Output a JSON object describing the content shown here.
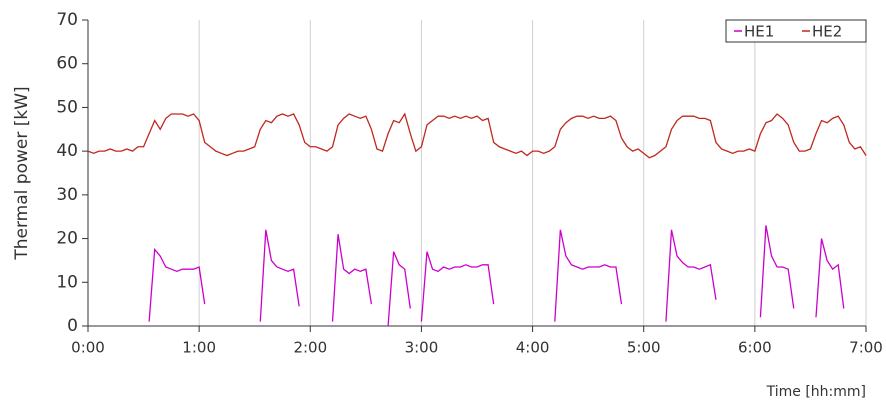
{
  "chart_data": {
    "type": "line",
    "x_label": "Time [hh:mm]",
    "y_label": "Thermal power [kW]",
    "xlim": [
      0,
      7
    ],
    "ylim": [
      0,
      70
    ],
    "xticks": [
      {
        "value": 0,
        "label": "0:00"
      },
      {
        "value": 1,
        "label": "1:00"
      },
      {
        "value": 2,
        "label": "2:00"
      },
      {
        "value": 3,
        "label": "3:00"
      },
      {
        "value": 4,
        "label": "4:00"
      },
      {
        "value": 5,
        "label": "5:00"
      },
      {
        "value": 6,
        "label": "6:00"
      },
      {
        "value": 7,
        "label": "7:00"
      }
    ],
    "yticks": [
      0,
      10,
      20,
      30,
      40,
      50,
      60,
      70
    ],
    "grid": "x",
    "legend": "upper right",
    "x": [
      0,
      0.05,
      0.1,
      0.15,
      0.2,
      0.25,
      0.3,
      0.35,
      0.4,
      0.45,
      0.5,
      0.55,
      0.6,
      0.65,
      0.7,
      0.75,
      0.8,
      0.85,
      0.9,
      0.95,
      1,
      1.05,
      1.1,
      1.15,
      1.2,
      1.25,
      1.3,
      1.35,
      1.4,
      1.45,
      1.5,
      1.55,
      1.6,
      1.65,
      1.7,
      1.75,
      1.8,
      1.85,
      1.9,
      1.95,
      2,
      2.05,
      2.1,
      2.15,
      2.2,
      2.25,
      2.3,
      2.35,
      2.4,
      2.45,
      2.5,
      2.55,
      2.6,
      2.65,
      2.7,
      2.75,
      2.8,
      2.85,
      2.9,
      2.95,
      3,
      3.05,
      3.1,
      3.15,
      3.2,
      3.25,
      3.3,
      3.35,
      3.4,
      3.45,
      3.5,
      3.55,
      3.6,
      3.65,
      3.7,
      3.75,
      3.8,
      3.85,
      3.9,
      3.95,
      4,
      4.05,
      4.1,
      4.15,
      4.2,
      4.25,
      4.3,
      4.35,
      4.4,
      4.45,
      4.5,
      4.55,
      4.6,
      4.65,
      4.7,
      4.75,
      4.8,
      4.85,
      4.9,
      4.95,
      5,
      5.05,
      5.1,
      5.15,
      5.2,
      5.25,
      5.3,
      5.35,
      5.4,
      5.45,
      5.5,
      5.55,
      5.6,
      5.65,
      5.7,
      5.75,
      5.8,
      5.85,
      5.9,
      5.95,
      6,
      6.05,
      6.1,
      6.15,
      6.2,
      6.25,
      6.3,
      6.35,
      6.4,
      6.45,
      6.5,
      6.55,
      6.6,
      6.65,
      6.7,
      6.75,
      6.8,
      6.85,
      6.9,
      6.95,
      7
    ],
    "series": [
      {
        "name": "HE1",
        "color": "#cc00cc",
        "values": [
          null,
          null,
          null,
          null,
          null,
          null,
          null,
          null,
          null,
          null,
          null,
          1,
          17.5,
          16,
          13.5,
          13,
          12.5,
          13,
          13,
          13,
          13.5,
          5,
          null,
          null,
          null,
          null,
          null,
          null,
          null,
          null,
          null,
          1,
          22,
          15,
          13.5,
          13,
          12.5,
          13,
          4.5,
          null,
          null,
          null,
          null,
          null,
          1,
          21,
          13,
          12,
          13,
          12.5,
          13,
          5,
          null,
          null,
          0,
          17,
          14,
          13,
          4,
          null,
          1,
          17,
          13,
          12.5,
          13.5,
          13,
          13.5,
          13.5,
          14,
          13.5,
          13.5,
          14,
          14,
          5,
          null,
          null,
          null,
          null,
          null,
          null,
          null,
          null,
          null,
          null,
          1,
          22,
          16,
          14,
          13.5,
          13,
          13.5,
          13.5,
          13.5,
          14,
          13.5,
          13.5,
          5,
          null,
          null,
          null,
          null,
          null,
          null,
          null,
          1,
          22,
          16,
          14.5,
          13.5,
          13.5,
          13,
          13.5,
          14,
          6,
          null,
          null,
          null,
          null,
          null,
          null,
          null,
          2,
          23,
          16,
          13.5,
          13.5,
          13,
          4,
          null,
          null,
          null,
          2,
          20,
          15,
          13,
          14,
          4,
          null,
          null,
          null,
          null
        ]
      },
      {
        "name": "HE2",
        "color": "#c0281e",
        "values": [
          40,
          39.5,
          40,
          40,
          40.5,
          40,
          40,
          40.5,
          40,
          41,
          41,
          44,
          47,
          45,
          47.5,
          48.5,
          48.5,
          48.5,
          48,
          48.5,
          47,
          42,
          41,
          40,
          39.5,
          39,
          39.5,
          40,
          40,
          40.5,
          41,
          45,
          47,
          46.5,
          48,
          48.5,
          48,
          48.5,
          46,
          42,
          41,
          41,
          40.5,
          40,
          41,
          46,
          47.5,
          48.5,
          48,
          47.5,
          48,
          45,
          40.5,
          40,
          44,
          47,
          46.5,
          48.5,
          44,
          40,
          41,
          46,
          47,
          48,
          48,
          47.5,
          48,
          47.5,
          48,
          47.5,
          48,
          47,
          47.5,
          42,
          41,
          40.5,
          40,
          39.5,
          40,
          39,
          40,
          40,
          39.5,
          40,
          41,
          45,
          46.5,
          47.5,
          48,
          48,
          47.5,
          48,
          47.5,
          47.5,
          48,
          47,
          43,
          41,
          40,
          40.5,
          39.5,
          38.5,
          39,
          40,
          41,
          45,
          47,
          48,
          48,
          48,
          47.5,
          47.5,
          47,
          42,
          40.5,
          40,
          39.5,
          40,
          40,
          40.5,
          40,
          44,
          46.5,
          47,
          48.5,
          47.5,
          46,
          42,
          40,
          40,
          40.5,
          44,
          47,
          46.5,
          47.5,
          48,
          46,
          42,
          40.5,
          41,
          39
        ]
      }
    ]
  }
}
